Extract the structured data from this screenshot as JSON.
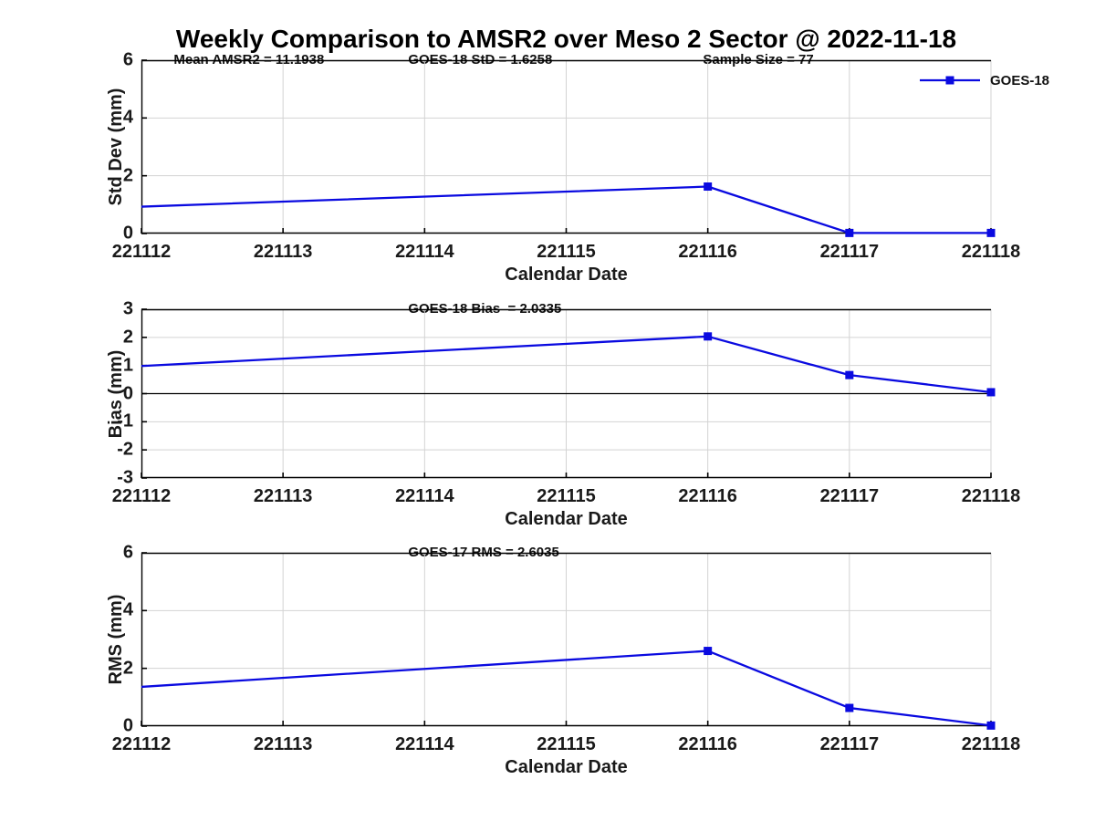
{
  "figure": {
    "title": "Weekly Comparison to AMSR2 over Meso 2 Sector @ 2022-11-18",
    "legend": {
      "label": "GOES-18"
    },
    "colors": {
      "line": "#0a0ae0",
      "grid": "#d3d3d3",
      "axis": "#000000",
      "text": "#1a1a1a"
    }
  },
  "chart_data": [
    {
      "type": "line",
      "ylabel": "Std Dev (mm)",
      "xlabel": "Calendar Date",
      "annotations": [
        "Mean AMSR2 = 11.1938",
        "GOES-18 StD = 1.6258",
        "Sample Size = 77"
      ],
      "xlim": [
        221112,
        221118
      ],
      "ylim": [
        0,
        6
      ],
      "xticks": [
        221112,
        221113,
        221114,
        221115,
        221116,
        221117,
        221118
      ],
      "yticks": [
        0,
        2,
        4,
        6
      ],
      "grid": true,
      "zero_line": false,
      "legend_position": "top-right-outside",
      "series": [
        {
          "name": "GOES-18",
          "x": [
            221112,
            221116,
            221117,
            221118
          ],
          "y": [
            0.93,
            1.6258,
            0.02,
            0.02
          ],
          "markers_at": [
            221116,
            221117,
            221118
          ]
        }
      ]
    },
    {
      "type": "line",
      "ylabel": "Bias (mm)",
      "xlabel": "Calendar Date",
      "annotations": [
        "GOES-18 Bias  = 2.0335"
      ],
      "xlim": [
        221112,
        221118
      ],
      "ylim": [
        -3,
        3
      ],
      "xticks": [
        221112,
        221113,
        221114,
        221115,
        221116,
        221117,
        221118
      ],
      "yticks": [
        -3,
        -2,
        -1,
        0,
        1,
        2,
        3
      ],
      "grid": true,
      "zero_line": true,
      "legend_position": "none",
      "series": [
        {
          "name": "GOES-18",
          "x": [
            221112,
            221116,
            221117,
            221118
          ],
          "y": [
            0.98,
            2.0335,
            0.66,
            0.05
          ],
          "markers_at": [
            221116,
            221117,
            221118
          ]
        }
      ]
    },
    {
      "type": "line",
      "ylabel": "RMS (mm)",
      "xlabel": "Calendar Date",
      "annotations": [
        "GOES-17 RMS = 2.6035"
      ],
      "xlim": [
        221112,
        221118
      ],
      "ylim": [
        0,
        6
      ],
      "xticks": [
        221112,
        221113,
        221114,
        221115,
        221116,
        221117,
        221118
      ],
      "yticks": [
        0,
        2,
        4,
        6
      ],
      "grid": true,
      "zero_line": false,
      "legend_position": "none",
      "series": [
        {
          "name": "GOES-17",
          "x": [
            221112,
            221116,
            221117,
            221118
          ],
          "y": [
            1.36,
            2.6035,
            0.63,
            0.02
          ],
          "markers_at": [
            221116,
            221117,
            221118
          ]
        }
      ]
    }
  ]
}
